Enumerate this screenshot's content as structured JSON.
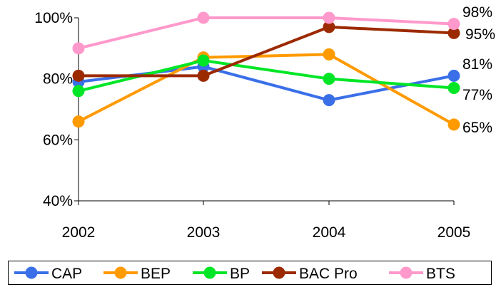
{
  "chart_data": {
    "type": "line",
    "title": "",
    "xlabel": "",
    "ylabel": "",
    "categories": [
      "2002",
      "2003",
      "2004",
      "2005"
    ],
    "ylim": [
      40,
      100
    ],
    "yticks": [
      40,
      60,
      80,
      100
    ],
    "ytick_labels": [
      "40%",
      "60%",
      "80%",
      "100%"
    ],
    "grid": false,
    "legend_position": "bottom",
    "series": [
      {
        "name": "CAP",
        "color": "#3a6fe8",
        "values": [
          79,
          84,
          73,
          81
        ],
        "end_label": "81%"
      },
      {
        "name": "BEP",
        "color": "#ff9a00",
        "values": [
          66,
          87,
          88,
          65
        ],
        "end_label": "65%"
      },
      {
        "name": "BP",
        "color": "#00e626",
        "values": [
          76,
          86,
          80,
          77
        ],
        "end_label": "77%"
      },
      {
        "name": "BAC Pro",
        "color": "#9c2a00",
        "values": [
          81,
          81,
          97,
          95
        ],
        "end_label": "95%"
      },
      {
        "name": "BTS",
        "color": "#ff99cc",
        "values": [
          90,
          100,
          100,
          98
        ],
        "end_label": "98%"
      }
    ]
  }
}
